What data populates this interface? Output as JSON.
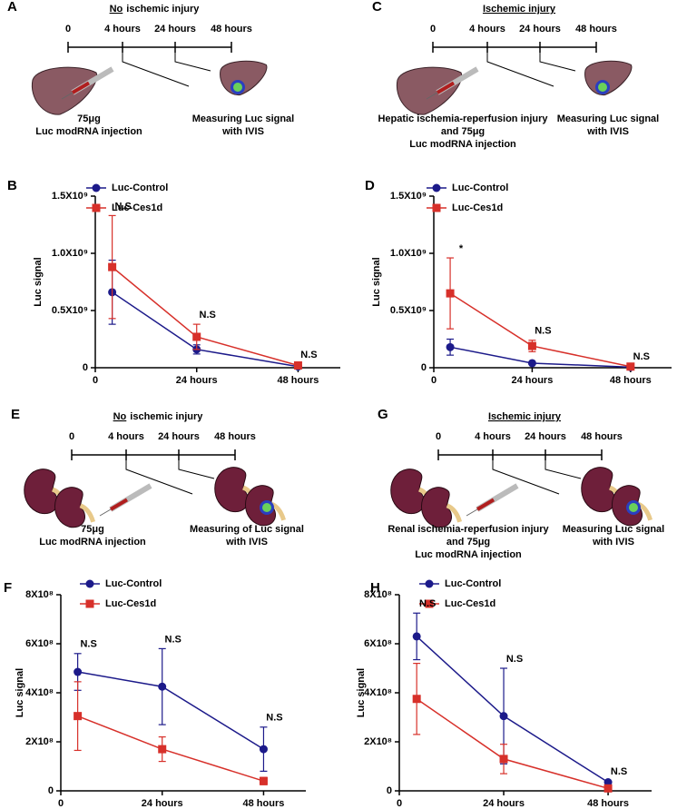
{
  "schematics": [
    {
      "panel": "A",
      "title_underlined": "No",
      "title_rest": "ischemic injury",
      "timeline": [
        "0",
        "4 hours",
        "24 hours",
        "48 hours"
      ],
      "left_caption": [
        "75μg",
        "Luc modRNA injection"
      ],
      "right_caption": [
        "Measuring Luc signal",
        "with IVIS"
      ]
    },
    {
      "panel": "C",
      "title_underlined": "Ischemic injury",
      "timeline": [
        "0",
        "4 hours",
        "24 hours",
        "48 hours"
      ],
      "left_caption": [
        "Hepatic ischemia-reperfusion injury",
        "and 75μg",
        "Luc modRNA injection"
      ],
      "right_caption": [
        "Measuring Luc signal",
        "with IVIS"
      ]
    },
    {
      "panel": "E",
      "title_underlined": "No",
      "title_rest": "ischemic injury",
      "timeline": [
        "0",
        "4 hours",
        "24 hours",
        "48 hours"
      ],
      "left_caption": [
        "75μg",
        "Luc modRNA injection"
      ],
      "right_caption": [
        "Measuring of Luc signal",
        "with IVIS"
      ]
    },
    {
      "panel": "G",
      "title_underlined": "Ischemic injury",
      "timeline": [
        "0",
        "4 hours",
        "24 hours",
        "48 hours"
      ],
      "left_caption": [
        "Renal ischemia-reperfusion injury",
        "and 75μg",
        "Luc modRNA injection"
      ],
      "right_caption": [
        "Measuring Luc signal",
        "with IVIS"
      ]
    }
  ],
  "chart_data": [
    {
      "panel": "B",
      "type": "line",
      "y_label": "Luc signal",
      "x": [
        4,
        24,
        48
      ],
      "xlim": [
        0,
        58
      ],
      "xticks": [
        0,
        {
          "value": 24,
          "label": "24 hours"
        },
        {
          "value": 48,
          "label": "48 hours"
        }
      ],
      "ylim": [
        0,
        1500000000
      ],
      "yticks": [
        0,
        {
          "value": 500000000,
          "label": "0.5X10⁹"
        },
        {
          "value": 1000000000,
          "label": "1.0X10⁹"
        },
        {
          "value": 1500000000,
          "label": "1.5X10⁹"
        }
      ],
      "series": [
        {
          "name": "Luc-Control",
          "color": "#1c1a8a",
          "marker": "circle",
          "values": [
            660000000,
            160000000,
            10000000
          ],
          "errors": [
            280000000,
            40000000,
            5000000
          ]
        },
        {
          "name": "Luc-Ces1d",
          "color": "#d7302a",
          "marker": "square",
          "values": [
            880000000,
            270000000,
            20000000
          ],
          "errors": [
            450000000,
            110000000,
            10000000
          ]
        }
      ],
      "annotations": [
        "N.S",
        "N.S",
        "N.S"
      ]
    },
    {
      "panel": "D",
      "type": "line",
      "y_label": "Luc signal",
      "x": [
        4,
        24,
        48
      ],
      "xlim": [
        0,
        58
      ],
      "xticks": [
        0,
        {
          "value": 24,
          "label": "24 hours"
        },
        {
          "value": 48,
          "label": "48 hours"
        }
      ],
      "ylim": [
        0,
        1500000000
      ],
      "yticks": [
        0,
        {
          "value": 500000000,
          "label": "0.5X10⁹"
        },
        {
          "value": 1000000000,
          "label": "1.0X10⁹"
        },
        {
          "value": 1500000000,
          "label": "1.5X10⁹"
        }
      ],
      "series": [
        {
          "name": "Luc-Control",
          "color": "#1c1a8a",
          "marker": "circle",
          "values": [
            180000000,
            40000000,
            5000000
          ],
          "errors": [
            70000000,
            10000000,
            3000000
          ]
        },
        {
          "name": "Luc-Ces1d",
          "color": "#d7302a",
          "marker": "square",
          "values": [
            650000000,
            190000000,
            10000000
          ],
          "errors": [
            310000000,
            50000000,
            5000000
          ]
        }
      ],
      "annotations": [
        "*",
        "N.S",
        "N.S"
      ]
    },
    {
      "panel": "F",
      "type": "line",
      "y_label": "Luc signal",
      "x": [
        4,
        24,
        48
      ],
      "xlim": [
        0,
        58
      ],
      "xticks": [
        0,
        {
          "value": 24,
          "label": "24 hours"
        },
        {
          "value": 48,
          "label": "48 hours"
        }
      ],
      "ylim": [
        0,
        800000000
      ],
      "yticks": [
        0,
        {
          "value": 200000000,
          "label": "2X10⁸"
        },
        {
          "value": 400000000,
          "label": "4X10⁸"
        },
        {
          "value": 600000000,
          "label": "6X10⁸"
        },
        {
          "value": 800000000,
          "label": "8X10⁸"
        }
      ],
      "series": [
        {
          "name": "Luc-Control",
          "color": "#1c1a8a",
          "marker": "circle",
          "values": [
            485000000,
            425000000,
            170000000
          ],
          "errors": [
            75000000,
            155000000,
            90000000
          ]
        },
        {
          "name": "Luc-Ces1d",
          "color": "#d7302a",
          "marker": "square",
          "values": [
            305000000,
            170000000,
            40000000
          ],
          "errors": [
            140000000,
            50000000,
            15000000
          ]
        }
      ],
      "annotations": [
        "N.S",
        "N.S",
        "N.S"
      ]
    },
    {
      "panel": "H",
      "type": "line",
      "y_label": "Luc signal",
      "x": [
        4,
        24,
        48
      ],
      "xlim": [
        0,
        58
      ],
      "xticks": [
        0,
        {
          "value": 24,
          "label": "24 hours"
        },
        {
          "value": 48,
          "label": "48 hours"
        }
      ],
      "ylim": [
        0,
        800000000
      ],
      "yticks": [
        0,
        {
          "value": 200000000,
          "label": "2X10⁸"
        },
        {
          "value": 400000000,
          "label": "4X10⁸"
        },
        {
          "value": 600000000,
          "label": "6X10⁸"
        },
        {
          "value": 800000000,
          "label": "8X10⁸"
        }
      ],
      "series": [
        {
          "name": "Luc-Control",
          "color": "#1c1a8a",
          "marker": "circle",
          "values": [
            630000000,
            305000000,
            35000000
          ],
          "errors": [
            95000000,
            195000000,
            5000000
          ]
        },
        {
          "name": "Luc-Ces1d",
          "color": "#d7302a",
          "marker": "square",
          "values": [
            375000000,
            130000000,
            10000000
          ],
          "errors": [
            145000000,
            60000000,
            5000000
          ]
        }
      ],
      "annotations": [
        "N.S",
        "N.S",
        "N.S"
      ]
    }
  ]
}
